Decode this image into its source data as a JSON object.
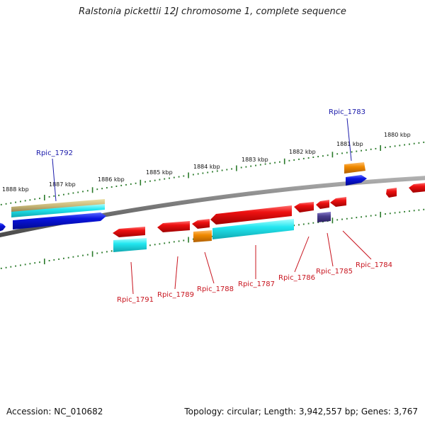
{
  "title": "Ralstonia pickettii 12J chromosome 1, complete sequence",
  "footer": {
    "accession": "Accession: NC_010682",
    "topology": "Topology: circular; Length: 3,942,557 bp; Genes: 3,767"
  },
  "ticks": [
    {
      "id": "tick-1888",
      "label": "1888 kbp"
    },
    {
      "id": "tick-1887",
      "label": "1887 kbp"
    },
    {
      "id": "tick-1886",
      "label": "1886 kbp"
    },
    {
      "id": "tick-1885",
      "label": "1885 kbp"
    },
    {
      "id": "tick-1884",
      "label": "1884 kbp"
    },
    {
      "id": "tick-1883",
      "label": "1883 kbp"
    },
    {
      "id": "tick-1882",
      "label": "1882 kbp"
    },
    {
      "id": "tick-1881",
      "label": "1881 kbp"
    },
    {
      "id": "tick-1880",
      "label": "1880 kbp"
    }
  ],
  "gene_labels": [
    {
      "id": "rpic-1783",
      "text": "Rpic_1783",
      "color": "#1a1aaa"
    },
    {
      "id": "rpic-1792",
      "text": "Rpic_1792",
      "color": "#1a1aaa"
    },
    {
      "id": "rpic-1791",
      "text": "Rpic_1791",
      "color": "#c8141e"
    },
    {
      "id": "rpic-1789",
      "text": "Rpic_1789",
      "color": "#c8141e"
    },
    {
      "id": "rpic-1788",
      "text": "Rpic_1788",
      "color": "#c8141e"
    },
    {
      "id": "rpic-1787",
      "text": "Rpic_1787",
      "color": "#c8141e"
    },
    {
      "id": "rpic-1786",
      "text": "Rpic_1786",
      "color": "#c8141e"
    },
    {
      "id": "rpic-1785",
      "text": "Rpic_1785",
      "color": "#c8141e"
    },
    {
      "id": "rpic-1784",
      "text": "Rpic_1784",
      "color": "#c8141e"
    }
  ],
  "colors": {
    "backbone": "#777777",
    "tick": "#2a7a2a",
    "red_gene": "#ee1111",
    "blue_gene": "#0a14e0",
    "cyan_gene": "#22e6f0",
    "orange_gene": "#f08a00",
    "khaki_gene": "#c8b878",
    "navy_gene": "#4a3e8e",
    "red_label": "#c8141e",
    "blue_label": "#1a1aaa"
  }
}
